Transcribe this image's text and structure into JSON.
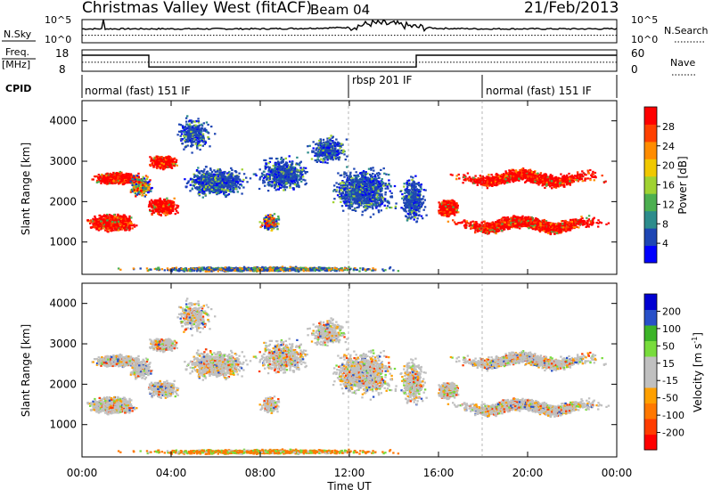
{
  "header": {
    "title": "Christmas Valley West (fitACF)",
    "beam": "Beam 04",
    "date": "21/Feb/2013"
  },
  "top_panels": {
    "nsky_label": "N.Sky",
    "nsky_ticks": [
      "10^5",
      "10^0"
    ],
    "nsearch_label": "N.Search",
    "nsearch_ticks": [
      "10^5",
      "10^0"
    ],
    "freq_label_1": "Freq.",
    "freq_label_2": "[MHz]",
    "freq_ticks": [
      "18",
      "8"
    ],
    "nave_label": "Nave",
    "nave_ticks": [
      "60",
      "0"
    ],
    "cpid_label": "CPID",
    "cpid_segments": [
      "normal (fast) 151 IF",
      "rbsp 201 IF",
      "normal (fast) 151 IF"
    ]
  },
  "colors": {
    "power": [
      "#0000ff",
      "#1e46b4",
      "#2d8c8c",
      "#4caf50",
      "#a0d232",
      "#f0c800",
      "#ff8c00",
      "#ff4000",
      "#ff0000"
    ],
    "velocity": [
      "#0000d2",
      "#2850c8",
      "#3cb428",
      "#78dc3c",
      "#c0c0c0",
      "#c0c0c0",
      "#ffa000",
      "#ff7800",
      "#ff3c00",
      "#ff0000"
    ]
  },
  "chart_data": [
    {
      "type": "line",
      "title": "N.Sky / N.Search",
      "x": [
        0,
        2,
        4,
        6,
        8,
        10,
        12,
        13,
        14,
        15,
        16,
        18,
        20,
        22,
        24
      ],
      "series": [
        {
          "name": "N.Sky",
          "values": [
            3.0,
            3.0,
            3.0,
            3.0,
            3.0,
            3.1,
            3.3,
            4.2,
            4.0,
            3.4,
            3.1,
            3.0,
            3.0,
            3.0,
            3.0
          ]
        }
      ],
      "ylim": [
        0,
        5
      ]
    },
    {
      "type": "line",
      "title": "Freq. [MHz] / Nave",
      "x": [
        0,
        3.0,
        3.0,
        15.0,
        15.0,
        24
      ],
      "series": [
        {
          "name": "Freq.",
          "values": [
            15.5,
            15.5,
            10.0,
            10.0,
            15.5,
            15.5
          ]
        }
      ],
      "ylim": [
        8,
        18
      ]
    },
    {
      "type": "heatmap",
      "xlabel": "Time UT",
      "ylabel": "Slant Range [km]",
      "colorbar_label": "Power [dB]",
      "colorbar_ticks": [
        "28",
        "24",
        "20",
        "16",
        "12",
        "8",
        "4"
      ],
      "xlim": [
        0,
        24
      ],
      "ylim": [
        200,
        4500
      ],
      "yticks": [
        "4000",
        "3000",
        "2000",
        "1000"
      ],
      "x_ticks": [
        "00:00",
        "04:00",
        "08:00",
        "12:00",
        "16:00",
        "20:00",
        "00:00"
      ]
    },
    {
      "type": "heatmap",
      "xlabel": "Time UT",
      "ylabel": "Slant Range [km]",
      "colorbar_label": "Velocity [m s^-1]",
      "colorbar_ticks": [
        "200",
        "100",
        "50",
        "15",
        "-15",
        "-50",
        "-100",
        "-200"
      ],
      "xlim": [
        0,
        24
      ],
      "ylim": [
        200,
        4500
      ],
      "yticks": [
        "4000",
        "3000",
        "2000",
        "1000"
      ],
      "x_ticks": [
        "00:00",
        "04:00",
        "08:00",
        "12:00",
        "16:00",
        "20:00",
        "00:00"
      ]
    }
  ],
  "axes": {
    "xlabel": "Time UT",
    "x_ticks": [
      "00:00",
      "04:00",
      "08:00",
      "12:00",
      "16:00",
      "20:00",
      "00:00"
    ],
    "ylabel": "Slant Range [km]",
    "yticks": [
      "4000",
      "3000",
      "2000",
      "1000"
    ],
    "power_label": "Power [dB]",
    "power_ticks": [
      "28",
      "24",
      "20",
      "16",
      "12",
      "8",
      "4"
    ],
    "velocity_label": "Velocity [m s",
    "velocity_sup": "-1",
    "velocity_tail": "]",
    "velocity_ticks": [
      "200",
      "100",
      "50",
      "15",
      "-15",
      "-50",
      "-100",
      "-200"
    ]
  }
}
